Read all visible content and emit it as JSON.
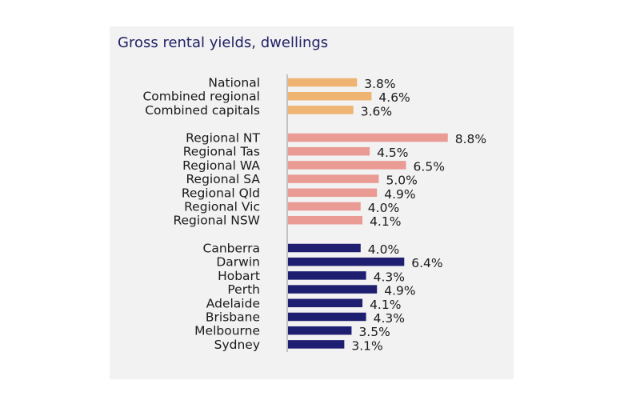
{
  "chart_data": {
    "type": "bar",
    "orientation": "horizontal",
    "title": "Gross rental yields, dwellings",
    "value_suffix": "%",
    "colors": {
      "national": "#efb372",
      "regional": "#e99b94",
      "capitals": "#1f1f72",
      "panel": "#f2f2f2",
      "axis": "#b3b3b3",
      "title": "#222266"
    },
    "groups": [
      {
        "color_key": "national",
        "categories": [
          "National",
          "Combined regional",
          "Combined capitals"
        ],
        "values": [
          3.8,
          4.6,
          3.6
        ],
        "labels": [
          "3.8%",
          "4.6%",
          "3.6%"
        ]
      },
      {
        "color_key": "regional",
        "categories": [
          "Regional NT",
          "Regional Tas",
          "Regional WA",
          "Regional SA",
          "Regional Qld",
          "Regional Vic",
          "Regional NSW"
        ],
        "values": [
          8.8,
          4.5,
          6.5,
          5.0,
          4.9,
          4.0,
          4.1
        ],
        "labels": [
          "8.8%",
          "4.5%",
          "6.5%",
          "5.0%",
          "4.9%",
          "4.0%",
          "4.1%"
        ]
      },
      {
        "color_key": "capitals",
        "categories": [
          "Canberra",
          "Darwin",
          "Hobart",
          "Perth",
          "Adelaide",
          "Brisbane",
          "Melbourne",
          "Sydney"
        ],
        "values": [
          4.0,
          6.4,
          4.3,
          4.9,
          4.1,
          4.3,
          3.5,
          3.1
        ],
        "labels": [
          "4.0%",
          "6.4%",
          "4.3%",
          "4.9%",
          "4.1%",
          "4.3%",
          "3.5%",
          "3.1%"
        ]
      }
    ]
  }
}
